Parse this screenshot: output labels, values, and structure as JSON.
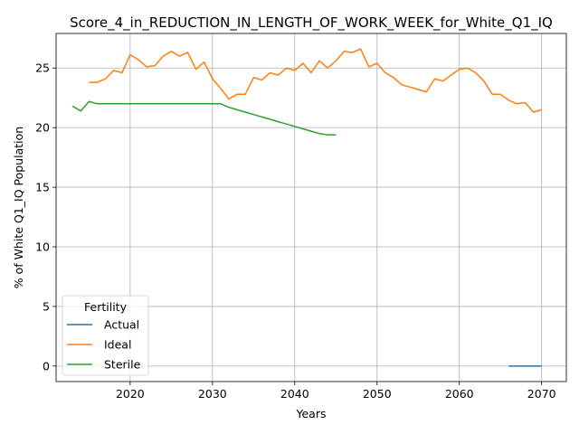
{
  "chart_data": {
    "type": "line",
    "title": "Score_4_in_REDUCTION_IN_LENGTH_OF_WORK_WEEK_for_White_Q1_IQ",
    "xlabel": "Years",
    "ylabel": "% of White Q1_IQ Population",
    "xlim": [
      2011,
      2073
    ],
    "ylim": [
      -1.3,
      27.9
    ],
    "xticks": [
      2020,
      2030,
      2040,
      2050,
      2060,
      2070
    ],
    "yticks": [
      0,
      5,
      10,
      15,
      20,
      25
    ],
    "grid": true,
    "legend": {
      "title": "Fertility",
      "position": "lower-left"
    },
    "series": [
      {
        "name": "Actual",
        "color": "#1f77b4",
        "x": [
          2066,
          2067,
          2068,
          2069,
          2070
        ],
        "y": [
          0,
          0,
          0,
          0,
          0
        ]
      },
      {
        "name": "Ideal",
        "color": "#ff7f0e",
        "x": [
          2015,
          2016,
          2017,
          2018,
          2019,
          2020,
          2021,
          2022,
          2023,
          2024,
          2025,
          2026,
          2027,
          2028,
          2029,
          2030,
          2031,
          2032,
          2033,
          2034,
          2035,
          2036,
          2037,
          2038,
          2039,
          2040,
          2041,
          2042,
          2043,
          2044,
          2045,
          2046,
          2047,
          2048,
          2049,
          2050,
          2051,
          2052,
          2053,
          2054,
          2055,
          2056,
          2057,
          2058,
          2059,
          2060,
          2061,
          2062,
          2063,
          2064,
          2065,
          2066,
          2067,
          2068,
          2069,
          2070
        ],
        "y": [
          23.8,
          23.8,
          24.1,
          24.8,
          24.6,
          26.1,
          25.7,
          25.1,
          25.2,
          26.0,
          26.4,
          26.0,
          26.3,
          24.9,
          25.5,
          24.1,
          23.3,
          22.4,
          22.8,
          22.8,
          24.2,
          24.0,
          24.6,
          24.4,
          25.0,
          24.8,
          25.4,
          24.6,
          25.6,
          25.0,
          25.6,
          26.4,
          26.3,
          26.6,
          25.1,
          25.4,
          24.6,
          24.2,
          23.6,
          23.4,
          23.2,
          23.0,
          24.1,
          23.9,
          24.4,
          24.9,
          25.0,
          24.6,
          23.9,
          22.8,
          22.8,
          22.3,
          22.0,
          22.1,
          21.3,
          21.5
        ]
      },
      {
        "name": "Sterile",
        "color": "#2ca02c",
        "x": [
          2013,
          2014,
          2015,
          2016,
          2017,
          2018,
          2019,
          2020,
          2021,
          2022,
          2023,
          2024,
          2025,
          2026,
          2027,
          2028,
          2029,
          2030,
          2031,
          2032,
          2033,
          2034,
          2035,
          2036,
          2037,
          2038,
          2039,
          2040,
          2041,
          2042,
          2043,
          2044,
          2045
        ],
        "y": [
          21.8,
          21.4,
          22.2,
          22.0,
          22.0,
          22.0,
          22.0,
          22.0,
          22.0,
          22.0,
          22.0,
          22.0,
          22.0,
          22.0,
          22.0,
          22.0,
          22.0,
          22.0,
          22.0,
          21.7,
          21.5,
          21.3,
          21.1,
          20.9,
          20.7,
          20.5,
          20.3,
          20.1,
          19.9,
          19.7,
          19.5,
          19.4,
          19.4
        ]
      }
    ]
  }
}
